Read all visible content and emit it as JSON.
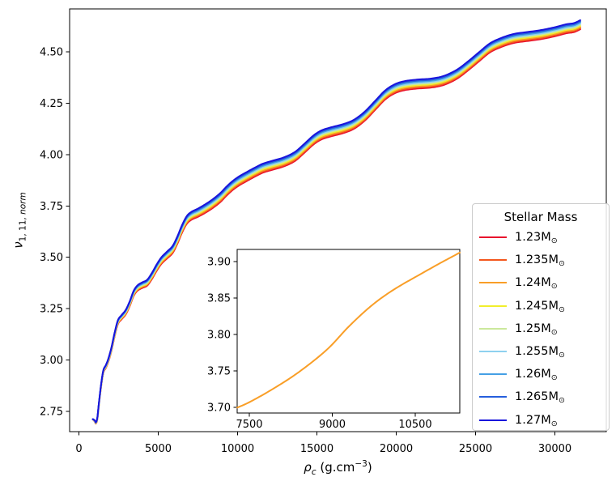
{
  "chart_data": {
    "type": "line",
    "title": "",
    "xlabel_parts": {
      "rho": "ρ",
      "sub": "c",
      "rest": " (g.cm",
      "sup": "−3",
      "close": ")"
    },
    "ylabel_parts": {
      "nu": "ν",
      "sub_nums": "1, 11, ",
      "sub_word": "norm"
    },
    "axes": {
      "xlim": [
        -587,
        33240
      ],
      "ylim": [
        2.6515,
        4.709
      ],
      "grid": false,
      "xticks": [
        {
          "v": 0,
          "label": "0"
        },
        {
          "v": 5000,
          "label": "5000"
        },
        {
          "v": 10000,
          "label": "10000"
        },
        {
          "v": 15000,
          "label": "15000"
        },
        {
          "v": 20000,
          "label": "20000"
        },
        {
          "v": 25000,
          "label": "25000"
        },
        {
          "v": 30000,
          "label": "30000"
        }
      ],
      "yticks": [
        {
          "v": 2.75,
          "label": "2.75"
        },
        {
          "v": 3.0,
          "label": "3.00"
        },
        {
          "v": 3.25,
          "label": "3.25"
        },
        {
          "v": 3.5,
          "label": "3.50"
        },
        {
          "v": 3.75,
          "label": "3.75"
        },
        {
          "v": 4.0,
          "label": "4.00"
        },
        {
          "v": 4.25,
          "label": "4.25"
        },
        {
          "v": 4.5,
          "label": "4.50"
        }
      ]
    },
    "legend": {
      "title": "Stellar Mass",
      "position": "lower right",
      "mass_suffix": "M",
      "sun_symbol": "⊙",
      "entries": [
        {
          "mass": "1.23",
          "color": "#e8112d"
        },
        {
          "mass": "1.235",
          "color": "#f4571d"
        },
        {
          "mass": "1.24",
          "color": "#f99e27"
        },
        {
          "mass": "1.245",
          "color": "#f1ee2c"
        },
        {
          "mass": "1.25",
          "color": "#cbe89c"
        },
        {
          "mass": "1.255",
          "color": "#8ed1ef"
        },
        {
          "mass": "1.26",
          "color": "#45a0e5"
        },
        {
          "mass": "1.265",
          "color": "#265fdd"
        },
        {
          "mass": "1.27",
          "color": "#1914dc"
        }
      ]
    },
    "series_model": {
      "comment": "curve_i(x) = base(x) + (i/8)*band_spread_max*sqrt(clamp((x-ramp_start)/ramp_length,0,1)); i=0 is 1.23Msun (red, bottom), i=8 is 1.27Msun (blue, top)",
      "band_spread_max": 0.044,
      "ramp_start": 870,
      "ramp_length": 8000,
      "num_series": 9,
      "line_width": 2
    },
    "base_curve_x": [
      870,
      1000,
      1070,
      1160,
      1260,
      1400,
      1540,
      1700,
      1860,
      2050,
      2250,
      2460,
      2700,
      2950,
      3200,
      3450,
      3700,
      4000,
      4300,
      4600,
      4900,
      5200,
      5550,
      5900,
      6200,
      6500,
      6800,
      7100,
      7500,
      7950,
      8400,
      8900,
      9300,
      9700,
      10100,
      10600,
      11100,
      11600,
      12200,
      12900,
      13600,
      14200,
      14800,
      15300,
      15900,
      16600,
      17300,
      18000,
      18700,
      19300,
      19900,
      20500,
      21300,
      22200,
      23000,
      23800,
      24500,
      25200,
      25900,
      26600,
      27400,
      28300,
      29200,
      30000,
      30700,
      31200,
      31600
    ],
    "base_curve_y": [
      2.712,
      2.7,
      2.691,
      2.712,
      2.782,
      2.872,
      2.938,
      2.962,
      2.993,
      3.045,
      3.115,
      3.175,
      3.199,
      3.222,
      3.262,
      3.312,
      3.338,
      3.351,
      3.362,
      3.394,
      3.434,
      3.468,
      3.494,
      3.52,
      3.565,
      3.62,
      3.663,
      3.683,
      3.697,
      3.716,
      3.738,
      3.768,
      3.8,
      3.828,
      3.85,
      3.872,
      3.893,
      3.912,
      3.926,
      3.942,
      3.968,
      4.008,
      4.05,
      4.074,
      4.089,
      4.103,
      4.124,
      4.164,
      4.22,
      4.268,
      4.298,
      4.313,
      4.321,
      4.326,
      4.339,
      4.368,
      4.408,
      4.453,
      4.497,
      4.523,
      4.543,
      4.553,
      4.563,
      4.576,
      4.59,
      4.596,
      4.61
    ],
    "inset": {
      "series_index": 2,
      "xlim": [
        7280,
        11305
      ],
      "ylim": [
        3.6922,
        3.9167
      ],
      "xticks": [
        {
          "v": 7500,
          "label": "7500"
        },
        {
          "v": 9000,
          "label": "9000"
        },
        {
          "v": 10500,
          "label": "10500"
        }
      ],
      "yticks": [
        {
          "v": 3.7,
          "label": "3.70"
        },
        {
          "v": 3.75,
          "label": "3.75"
        },
        {
          "v": 3.8,
          "label": "3.80"
        },
        {
          "v": 3.85,
          "label": "3.85"
        },
        {
          "v": 3.9,
          "label": "3.90"
        }
      ]
    }
  }
}
